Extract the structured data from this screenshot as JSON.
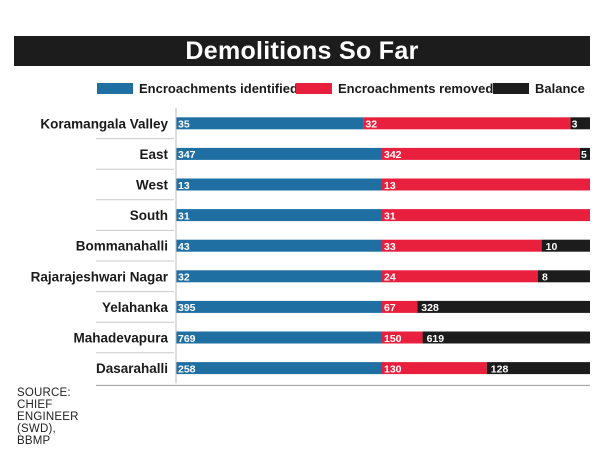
{
  "chart_data": {
    "type": "bar",
    "stacking": "two-bars-per-row (identified full-length; removed + balance stacked)",
    "title": "Demolitions So Far",
    "categories": [
      "Koramangala Valley",
      "East",
      "West",
      "South",
      "Bommanahalli",
      "Rajarajeshwari Nagar",
      "Yelahanka",
      "Mahadevapura",
      "Dasarahalli"
    ],
    "series": [
      {
        "name": "Encroachments identified",
        "color": "#1f6fa3",
        "values": [
          35,
          347,
          13,
          31,
          43,
          32,
          395,
          769,
          258
        ]
      },
      {
        "name": "Encroachments removed",
        "color": "#e8203e",
        "values": [
          32,
          342,
          13,
          31,
          33,
          24,
          67,
          150,
          130
        ]
      },
      {
        "name": "Balance",
        "color": "#1c1c1c",
        "values": [
          3,
          5,
          null,
          null,
          10,
          8,
          328,
          619,
          128
        ]
      }
    ],
    "legend_position": "top",
    "source": "SOURCE: CHIEF ENGINEER (SWD), BBMP"
  }
}
